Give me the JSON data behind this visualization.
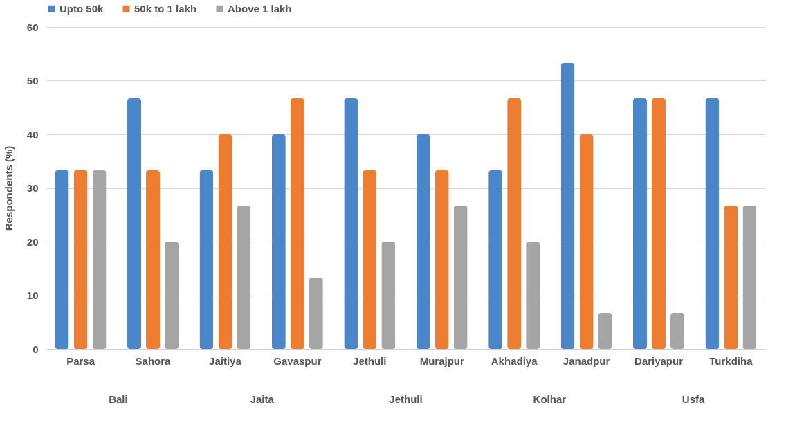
{
  "chart_data": {
    "type": "bar",
    "ylabel": "Respondents (%)",
    "categories": [
      "Parsa",
      "Sahora",
      "Jaitiya",
      "Gavaspur",
      "Jethuli",
      "Murajpur",
      "Akhadiya",
      "Janadpur",
      "Dariyapur",
      "Turkdiha"
    ],
    "series": [
      {
        "name": "Upto 50k",
        "color": "#4a86c8",
        "values": [
          33.3,
          46.7,
          33.3,
          40,
          46.7,
          40,
          33.3,
          53.3,
          46.7,
          46.7
        ]
      },
      {
        "name": "50k to 1 lakh",
        "color": "#ed7d31",
        "values": [
          33.3,
          33.3,
          40,
          46.7,
          33.3,
          33.3,
          46.7,
          40,
          46.7,
          26.7
        ]
      },
      {
        "name": "Above 1 lakh",
        "color": "#a5a5a5",
        "values": [
          33.3,
          20,
          26.7,
          13.3,
          20,
          26.7,
          20,
          6.7,
          6.7,
          26.7
        ]
      }
    ],
    "ylim": [
      0,
      60
    ],
    "yticks": [
      0,
      10,
      20,
      30,
      40,
      50,
      60
    ],
    "grid": "y",
    "legend": "top",
    "annotations": [
      "Bali",
      "Jaita",
      "Jethuli",
      "Kolhar",
      "Usfa"
    ]
  }
}
